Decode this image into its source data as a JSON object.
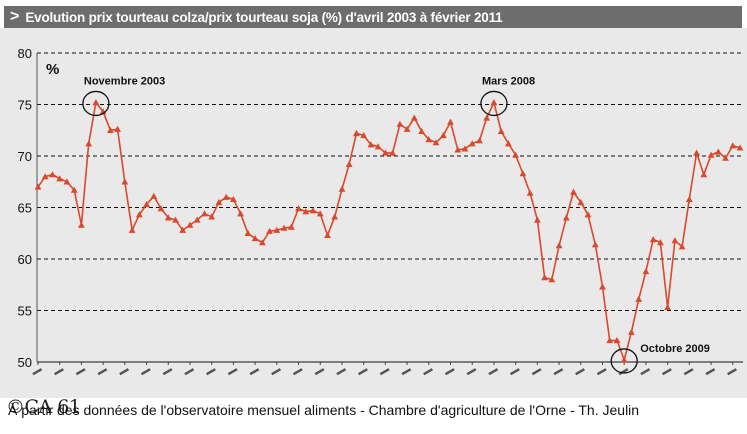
{
  "header": {
    "chevron": ">",
    "title": "Evolution prix tourteau colza/prix tourteau soja (%) d'avril 2003 à février 2011"
  },
  "footer": {
    "logo": "©CA 61",
    "source": "À partir des données de l'observatoire mensuel aliments - Chambre d'agriculture de l'Orne - Th. Jeulin"
  },
  "colors": {
    "line": "#d9492c",
    "marker": "#d9492c",
    "background": "#e9e9e9",
    "grid": "#111111",
    "header_bg": "#6d6d6d"
  },
  "chart_data": {
    "type": "line",
    "title": "Evolution prix tourteau colza/prix tourteau soja (%) d'avril 2003 à février 2011",
    "ylabel": "%",
    "xlabel": "",
    "ylim": [
      50,
      80
    ],
    "yticks": [
      50,
      55,
      60,
      65,
      70,
      75,
      80
    ],
    "grid": "horizontal dashed",
    "legend": "none",
    "series": [
      {
        "values": [
          67.0,
          68.0,
          68.2,
          67.8,
          67.5,
          66.7,
          63.3,
          71.2,
          75.2,
          74.3,
          72.5,
          72.6,
          67.5,
          62.8,
          64.3,
          65.3,
          66.1,
          64.9,
          64.0,
          63.8,
          62.8,
          63.3,
          63.8,
          64.4,
          64.1,
          65.5,
          66.0,
          65.8,
          64.4,
          62.5,
          62.0,
          61.6,
          62.7,
          62.8,
          63.0,
          63.1,
          64.9,
          64.6,
          64.7,
          64.4,
          62.3,
          64.1,
          66.8,
          69.2,
          72.2,
          72.0,
          71.1,
          70.9,
          70.3,
          70.3,
          73.1,
          72.6,
          73.7,
          72.4,
          71.6,
          71.3,
          72.0,
          73.3,
          70.6,
          70.7,
          71.2,
          71.5,
          73.7,
          75.2,
          72.4,
          71.2,
          70.1,
          68.3,
          66.4,
          63.8,
          58.2,
          58.0,
          61.3,
          64.0,
          66.5,
          65.5,
          64.3,
          61.4,
          57.3,
          52.1,
          52.1,
          50.2,
          52.9,
          56.1,
          58.8,
          61.9,
          61.6,
          55.3,
          61.8,
          61.2,
          65.8,
          70.3,
          68.2,
          70.1,
          70.4,
          69.8,
          71.0,
          70.8
        ]
      }
    ],
    "annotations": [
      {
        "label": "Novembre 2003",
        "value": 75.2
      },
      {
        "label": "Mars 2008",
        "value": 75.2
      },
      {
        "label": "Octobre 2009",
        "value": 50.2
      }
    ]
  }
}
